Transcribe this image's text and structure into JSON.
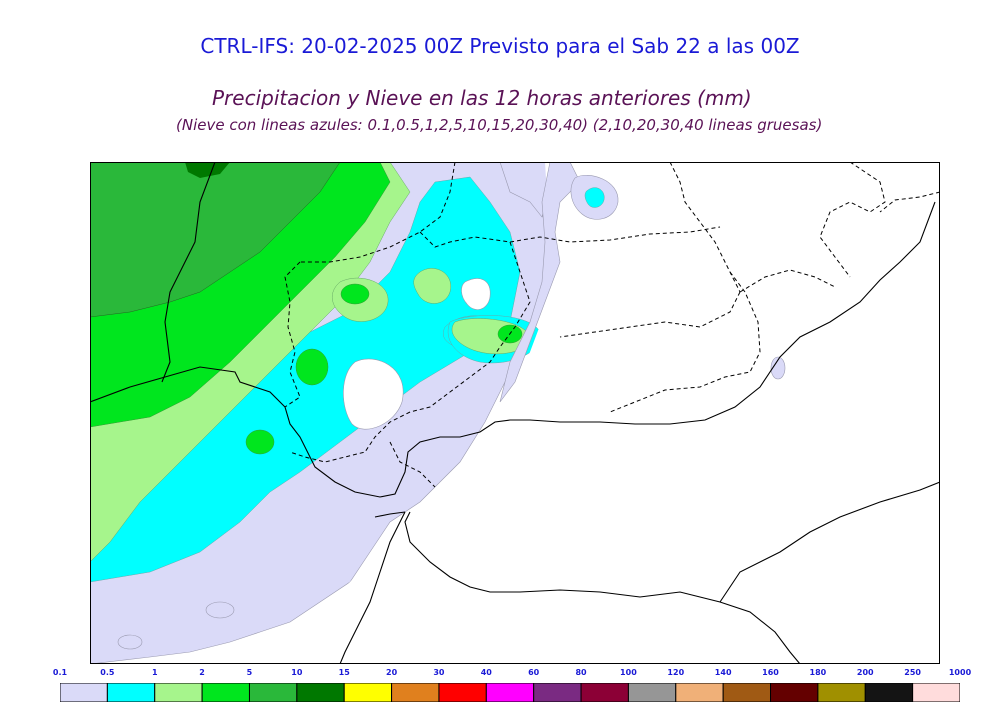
{
  "header": {
    "title": "CTRL-IFS: 20-02-2025 00Z Previsto para el Sab 22 a las 00Z",
    "subtitle": "Precipitacion y Nieve en las 12 horas anteriores (mm)",
    "note": "(Nieve con lineas azules: 0.1,0.5,1,2,5,10,15,20,30,40)  (2,10,20,30,40 lineas gruesas)"
  },
  "legend": {
    "labels": [
      "0.1",
      "0.5",
      "1",
      "2",
      "5",
      "10",
      "15",
      "20",
      "30",
      "40",
      "60",
      "80",
      "100",
      "120",
      "140",
      "160",
      "180",
      "200",
      "250",
      "1000"
    ],
    "colors": [
      "#dadaf8",
      "#00ffff",
      "#a6f58c",
      "#00e61e",
      "#2ab83a",
      "#007800",
      "#ffff00",
      "#e0801e",
      "#ff0000",
      "#ff00ff",
      "#7a2a82",
      "#8c0036",
      "#969696",
      "#f0b078",
      "#a05a14",
      "#640000",
      "#a09000",
      "#141414",
      "#ffdcdc"
    ]
  },
  "colors": {
    "title": "#1a1ad6",
    "subtitle": "#5a1256",
    "border_line": "#000000"
  },
  "map": {
    "icons": [
      "coastline",
      "country-borders-dashed",
      "precipitation-shading"
    ]
  }
}
